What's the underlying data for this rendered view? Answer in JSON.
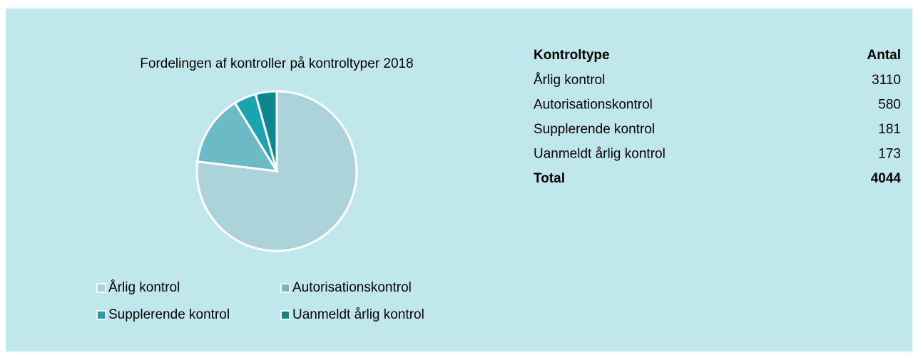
{
  "chart_data": {
    "type": "pie",
    "title": "Fordelingen af kontroller på kontroltyper 2018",
    "categories": [
      "Årlig kontrol",
      "Autorisationskontrol",
      "Supplerende kontrol",
      "Uanmeldt årlig kontrol"
    ],
    "values": [
      3110,
      580,
      181,
      173
    ],
    "colors": [
      "#abd3d9",
      "#6bbac6",
      "#1ba3b0",
      "#0f858f"
    ]
  },
  "table": {
    "header": [
      "Kontroltype",
      "Antal"
    ],
    "total": [
      "Total",
      4044
    ]
  }
}
